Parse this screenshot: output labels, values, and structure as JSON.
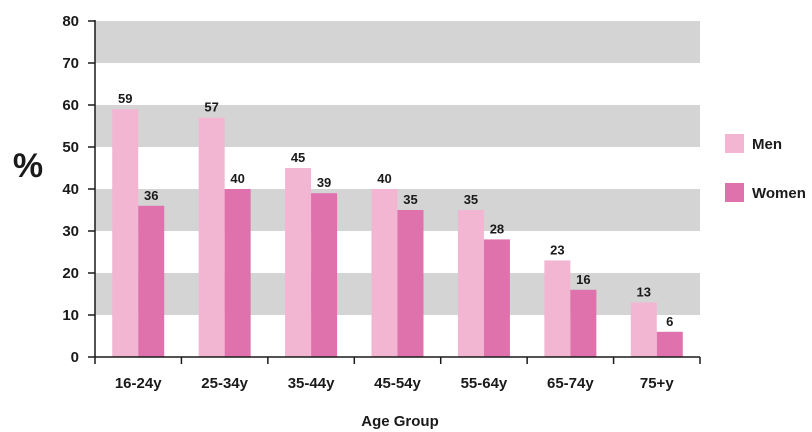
{
  "chart_data": {
    "type": "bar",
    "title": "",
    "xlabel": "Age Group",
    "ylabel": "%",
    "ylim": [
      0,
      80
    ],
    "yticks": [
      0,
      10,
      20,
      30,
      40,
      50,
      60,
      70,
      80
    ],
    "grid": "alternating horizontal bands",
    "legend_position": "right",
    "categories": [
      "16-24y",
      "25-34y",
      "35-44y",
      "45-54y",
      "55-64y",
      "65-74y",
      "75+y"
    ],
    "series": [
      {
        "name": "Men",
        "color": "#f2b6d3",
        "values": [
          59,
          57,
          45,
          40,
          35,
          23,
          13
        ]
      },
      {
        "name": "Women",
        "color": "#df72ad",
        "values": [
          36,
          40,
          39,
          35,
          28,
          16,
          6
        ]
      }
    ],
    "band_color": "#d4d4d4"
  }
}
